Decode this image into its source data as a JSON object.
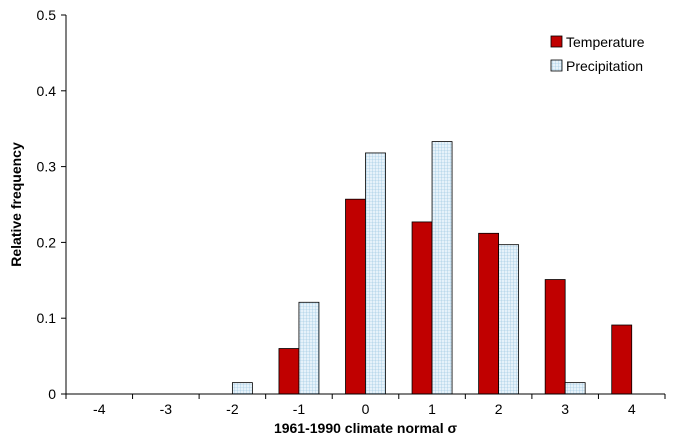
{
  "chart_data": {
    "type": "bar",
    "title": "",
    "xlabel": "1961-1990 climate normal σ",
    "ylabel": "Relative frequency",
    "categories": [
      "-4",
      "-3",
      "-2",
      "-1",
      "0",
      "1",
      "2",
      "3",
      "4"
    ],
    "ylim": [
      0,
      0.5
    ],
    "yticks": [
      "0",
      "0.1",
      "0.2",
      "0.3",
      "0.4",
      "0.5"
    ],
    "grid": false,
    "legend_position": "top-right",
    "series": [
      {
        "name": "Temperature",
        "color": "#c00000",
        "pattern": "solid",
        "values": [
          0,
          0,
          0,
          0.06,
          0.257,
          0.227,
          0.212,
          0.151,
          0.091
        ]
      },
      {
        "name": "Precipitation",
        "color": "#e6f2fa",
        "pattern": "grid",
        "values": [
          0,
          0,
          0.015,
          0.121,
          0.318,
          0.333,
          0.197,
          0.015,
          0
        ]
      }
    ]
  }
}
